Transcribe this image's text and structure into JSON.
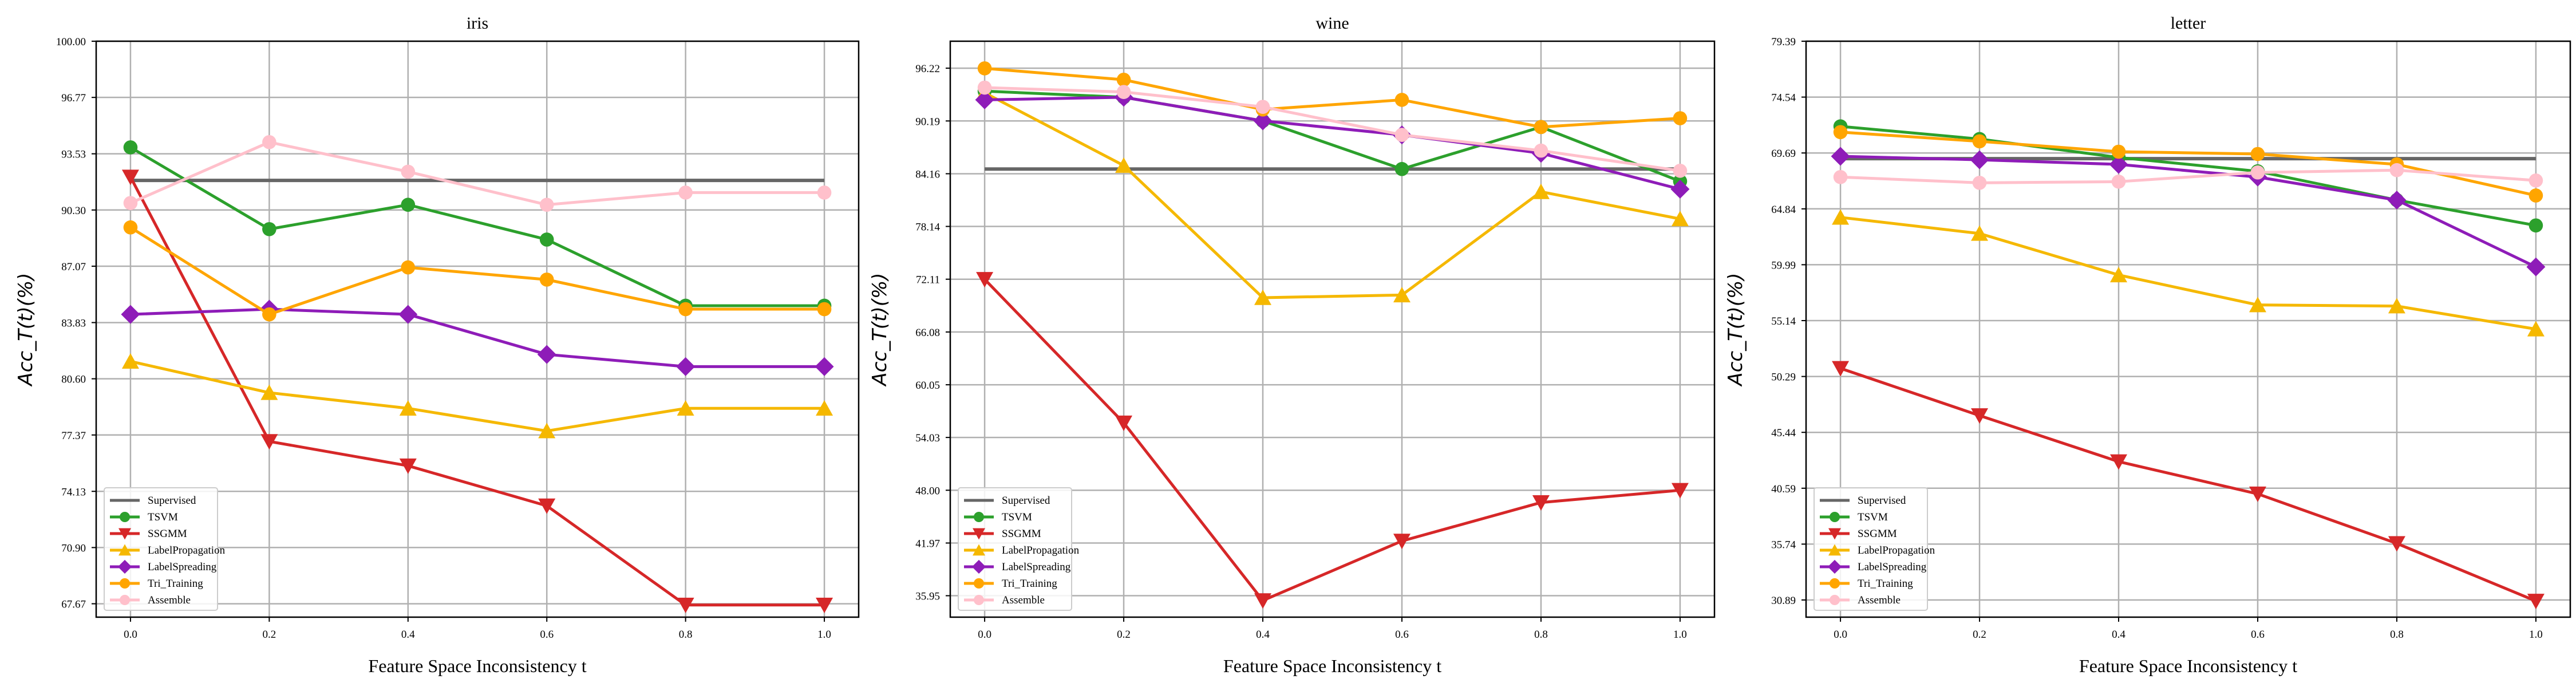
{
  "figure": {
    "background": "#ffffff"
  },
  "series_styles": {
    "Supervised": {
      "color": "#666666",
      "marker": "none"
    },
    "TSVM": {
      "color": "#2ca02c",
      "marker": "circle"
    },
    "SSGMM": {
      "color": "#d62728",
      "marker": "triangle-down"
    },
    "LabelPropagation": {
      "color": "#f5b800",
      "marker": "triangle-up"
    },
    "LabelSpreading": {
      "color": "#8e1cb8",
      "marker": "diamond"
    },
    "Tri_Training": {
      "color": "#ffa500",
      "marker": "circle"
    },
    "Assemble": {
      "color": "#ffc0cb",
      "marker": "circle"
    }
  },
  "chart_data": [
    {
      "type": "line",
      "title": "iris",
      "xlabel": "Feature Space Inconsistency t",
      "ylabel": "Acc_T(t)(%)",
      "x": [
        0.0,
        0.2,
        0.4,
        0.6,
        0.8,
        1.0
      ],
      "xticks": [
        "0.0",
        "0.2",
        "0.4",
        "0.6",
        "0.8",
        "1.0"
      ],
      "yticks": [
        "67.67",
        "70.90",
        "74.13",
        "77.37",
        "80.60",
        "83.83",
        "87.07",
        "90.30",
        "93.53",
        "96.77",
        "100.00"
      ],
      "ylim": [
        66.9,
        100.0
      ],
      "grid": true,
      "legend_position": "lower-left",
      "series": [
        {
          "name": "Supervised",
          "values": [
            92.0,
            92.0,
            92.0,
            92.0,
            92.0,
            92.0
          ]
        },
        {
          "name": "TSVM",
          "values": [
            93.9,
            89.2,
            90.6,
            88.6,
            84.8,
            84.8
          ]
        },
        {
          "name": "SSGMM",
          "values": [
            92.2,
            77.0,
            75.6,
            73.3,
            67.6,
            67.6
          ]
        },
        {
          "name": "LabelPropagation",
          "values": [
            81.6,
            79.8,
            78.9,
            77.6,
            78.9,
            78.9
          ]
        },
        {
          "name": "LabelSpreading",
          "values": [
            84.3,
            84.6,
            84.3,
            82.0,
            81.3,
            81.3
          ]
        },
        {
          "name": "Tri_Training",
          "values": [
            89.3,
            84.3,
            87.0,
            86.3,
            84.6,
            84.6
          ]
        },
        {
          "name": "Assemble",
          "values": [
            90.7,
            94.2,
            92.5,
            90.6,
            91.3,
            91.3
          ]
        }
      ]
    },
    {
      "type": "line",
      "title": "wine",
      "xlabel": "Feature Space Inconsistency t",
      "ylabel": "Acc_T(t)(%)",
      "x": [
        0.0,
        0.2,
        0.4,
        0.6,
        0.8,
        1.0
      ],
      "xticks": [
        "0.0",
        "0.2",
        "0.4",
        "0.6",
        "0.8",
        "1.0"
      ],
      "yticks": [
        "35.95",
        "41.97",
        "48.00",
        "54.03",
        "60.05",
        "66.08",
        "72.11",
        "78.14",
        "84.16",
        "90.19",
        "96.22"
      ],
      "ylim": [
        33.5,
        99.3
      ],
      "grid": true,
      "legend_position": "lower-left",
      "series": [
        {
          "name": "Supervised",
          "values": [
            84.7,
            84.7,
            84.7,
            84.7,
            84.7,
            84.7
          ]
        },
        {
          "name": "TSVM",
          "values": [
            93.6,
            92.9,
            90.2,
            84.7,
            89.5,
            83.3
          ]
        },
        {
          "name": "SSGMM",
          "values": [
            72.1,
            55.7,
            35.4,
            42.2,
            46.6,
            48.0
          ]
        },
        {
          "name": "LabelPropagation",
          "values": [
            93.4,
            85.1,
            70.0,
            70.3,
            82.1,
            79.0
          ]
        },
        {
          "name": "LabelSpreading",
          "values": [
            92.6,
            92.9,
            90.2,
            88.6,
            86.5,
            82.4
          ]
        },
        {
          "name": "Tri_Training",
          "values": [
            96.2,
            94.9,
            91.5,
            92.6,
            89.5,
            90.5
          ]
        },
        {
          "name": "Assemble",
          "values": [
            94.0,
            93.5,
            91.8,
            88.6,
            86.8,
            84.5
          ]
        }
      ]
    },
    {
      "type": "line",
      "title": "letter",
      "xlabel": "Feature Space Inconsistency t",
      "ylabel": "Acc_T(t)(%)",
      "x": [
        0.0,
        0.2,
        0.4,
        0.6,
        0.8,
        1.0
      ],
      "xticks": [
        "0.0",
        "0.2",
        "0.4",
        "0.6",
        "0.8",
        "1.0"
      ],
      "yticks": [
        "30.89",
        "35.74",
        "40.59",
        "45.44",
        "50.29",
        "55.14",
        "59.99",
        "64.84",
        "69.69",
        "74.54",
        "79.39"
      ],
      "ylim": [
        29.4,
        79.39
      ],
      "grid": true,
      "legend_position": "lower-left",
      "series": [
        {
          "name": "Supervised",
          "values": [
            69.2,
            69.2,
            69.2,
            69.2,
            69.2,
            69.2
          ]
        },
        {
          "name": "TSVM",
          "values": [
            72.0,
            70.9,
            69.3,
            68.1,
            65.6,
            63.4
          ]
        },
        {
          "name": "SSGMM",
          "values": [
            51.0,
            46.9,
            42.9,
            40.1,
            35.8,
            30.8
          ]
        },
        {
          "name": "LabelPropagation",
          "values": [
            64.1,
            62.7,
            59.1,
            56.5,
            56.4,
            54.4
          ]
        },
        {
          "name": "LabelSpreading",
          "values": [
            69.4,
            69.1,
            68.7,
            67.6,
            65.6,
            59.8
          ]
        },
        {
          "name": "Tri_Training",
          "values": [
            71.5,
            70.7,
            69.8,
            69.6,
            68.7,
            66.0
          ]
        },
        {
          "name": "Assemble",
          "values": [
            67.6,
            67.1,
            67.2,
            68.0,
            68.2,
            67.3
          ]
        }
      ]
    }
  ]
}
